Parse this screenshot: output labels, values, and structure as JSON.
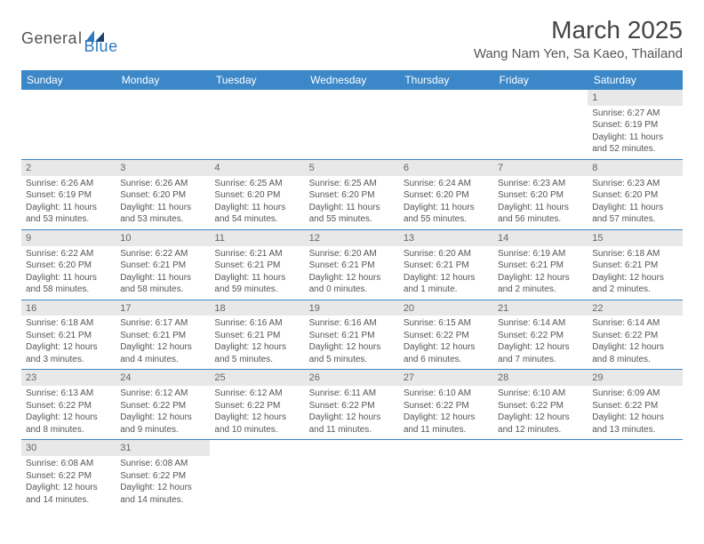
{
  "logo": {
    "part1": "Genera",
    "part2": "l",
    "part3": "Blue"
  },
  "title": "March 2025",
  "location": "Wang Nam Yen, Sa Kaeo, Thailand",
  "colors": {
    "header_bg": "#3b87c8",
    "header_text": "#ffffff",
    "daynum_bg": "#e8e8e8",
    "text": "#555555",
    "rule": "#3b87c8"
  },
  "weekdays": [
    "Sunday",
    "Monday",
    "Tuesday",
    "Wednesday",
    "Thursday",
    "Friday",
    "Saturday"
  ],
  "weeks": [
    [
      null,
      null,
      null,
      null,
      null,
      null,
      {
        "n": "1",
        "sr": "Sunrise: 6:27 AM",
        "ss": "Sunset: 6:19 PM",
        "d1": "Daylight: 11 hours",
        "d2": "and 52 minutes."
      }
    ],
    [
      {
        "n": "2",
        "sr": "Sunrise: 6:26 AM",
        "ss": "Sunset: 6:19 PM",
        "d1": "Daylight: 11 hours",
        "d2": "and 53 minutes."
      },
      {
        "n": "3",
        "sr": "Sunrise: 6:26 AM",
        "ss": "Sunset: 6:20 PM",
        "d1": "Daylight: 11 hours",
        "d2": "and 53 minutes."
      },
      {
        "n": "4",
        "sr": "Sunrise: 6:25 AM",
        "ss": "Sunset: 6:20 PM",
        "d1": "Daylight: 11 hours",
        "d2": "and 54 minutes."
      },
      {
        "n": "5",
        "sr": "Sunrise: 6:25 AM",
        "ss": "Sunset: 6:20 PM",
        "d1": "Daylight: 11 hours",
        "d2": "and 55 minutes."
      },
      {
        "n": "6",
        "sr": "Sunrise: 6:24 AM",
        "ss": "Sunset: 6:20 PM",
        "d1": "Daylight: 11 hours",
        "d2": "and 55 minutes."
      },
      {
        "n": "7",
        "sr": "Sunrise: 6:23 AM",
        "ss": "Sunset: 6:20 PM",
        "d1": "Daylight: 11 hours",
        "d2": "and 56 minutes."
      },
      {
        "n": "8",
        "sr": "Sunrise: 6:23 AM",
        "ss": "Sunset: 6:20 PM",
        "d1": "Daylight: 11 hours",
        "d2": "and 57 minutes."
      }
    ],
    [
      {
        "n": "9",
        "sr": "Sunrise: 6:22 AM",
        "ss": "Sunset: 6:20 PM",
        "d1": "Daylight: 11 hours",
        "d2": "and 58 minutes."
      },
      {
        "n": "10",
        "sr": "Sunrise: 6:22 AM",
        "ss": "Sunset: 6:21 PM",
        "d1": "Daylight: 11 hours",
        "d2": "and 58 minutes."
      },
      {
        "n": "11",
        "sr": "Sunrise: 6:21 AM",
        "ss": "Sunset: 6:21 PM",
        "d1": "Daylight: 11 hours",
        "d2": "and 59 minutes."
      },
      {
        "n": "12",
        "sr": "Sunrise: 6:20 AM",
        "ss": "Sunset: 6:21 PM",
        "d1": "Daylight: 12 hours",
        "d2": "and 0 minutes."
      },
      {
        "n": "13",
        "sr": "Sunrise: 6:20 AM",
        "ss": "Sunset: 6:21 PM",
        "d1": "Daylight: 12 hours",
        "d2": "and 1 minute."
      },
      {
        "n": "14",
        "sr": "Sunrise: 6:19 AM",
        "ss": "Sunset: 6:21 PM",
        "d1": "Daylight: 12 hours",
        "d2": "and 2 minutes."
      },
      {
        "n": "15",
        "sr": "Sunrise: 6:18 AM",
        "ss": "Sunset: 6:21 PM",
        "d1": "Daylight: 12 hours",
        "d2": "and 2 minutes."
      }
    ],
    [
      {
        "n": "16",
        "sr": "Sunrise: 6:18 AM",
        "ss": "Sunset: 6:21 PM",
        "d1": "Daylight: 12 hours",
        "d2": "and 3 minutes."
      },
      {
        "n": "17",
        "sr": "Sunrise: 6:17 AM",
        "ss": "Sunset: 6:21 PM",
        "d1": "Daylight: 12 hours",
        "d2": "and 4 minutes."
      },
      {
        "n": "18",
        "sr": "Sunrise: 6:16 AM",
        "ss": "Sunset: 6:21 PM",
        "d1": "Daylight: 12 hours",
        "d2": "and 5 minutes."
      },
      {
        "n": "19",
        "sr": "Sunrise: 6:16 AM",
        "ss": "Sunset: 6:21 PM",
        "d1": "Daylight: 12 hours",
        "d2": "and 5 minutes."
      },
      {
        "n": "20",
        "sr": "Sunrise: 6:15 AM",
        "ss": "Sunset: 6:22 PM",
        "d1": "Daylight: 12 hours",
        "d2": "and 6 minutes."
      },
      {
        "n": "21",
        "sr": "Sunrise: 6:14 AM",
        "ss": "Sunset: 6:22 PM",
        "d1": "Daylight: 12 hours",
        "d2": "and 7 minutes."
      },
      {
        "n": "22",
        "sr": "Sunrise: 6:14 AM",
        "ss": "Sunset: 6:22 PM",
        "d1": "Daylight: 12 hours",
        "d2": "and 8 minutes."
      }
    ],
    [
      {
        "n": "23",
        "sr": "Sunrise: 6:13 AM",
        "ss": "Sunset: 6:22 PM",
        "d1": "Daylight: 12 hours",
        "d2": "and 8 minutes."
      },
      {
        "n": "24",
        "sr": "Sunrise: 6:12 AM",
        "ss": "Sunset: 6:22 PM",
        "d1": "Daylight: 12 hours",
        "d2": "and 9 minutes."
      },
      {
        "n": "25",
        "sr": "Sunrise: 6:12 AM",
        "ss": "Sunset: 6:22 PM",
        "d1": "Daylight: 12 hours",
        "d2": "and 10 minutes."
      },
      {
        "n": "26",
        "sr": "Sunrise: 6:11 AM",
        "ss": "Sunset: 6:22 PM",
        "d1": "Daylight: 12 hours",
        "d2": "and 11 minutes."
      },
      {
        "n": "27",
        "sr": "Sunrise: 6:10 AM",
        "ss": "Sunset: 6:22 PM",
        "d1": "Daylight: 12 hours",
        "d2": "and 11 minutes."
      },
      {
        "n": "28",
        "sr": "Sunrise: 6:10 AM",
        "ss": "Sunset: 6:22 PM",
        "d1": "Daylight: 12 hours",
        "d2": "and 12 minutes."
      },
      {
        "n": "29",
        "sr": "Sunrise: 6:09 AM",
        "ss": "Sunset: 6:22 PM",
        "d1": "Daylight: 12 hours",
        "d2": "and 13 minutes."
      }
    ],
    [
      {
        "n": "30",
        "sr": "Sunrise: 6:08 AM",
        "ss": "Sunset: 6:22 PM",
        "d1": "Daylight: 12 hours",
        "d2": "and 14 minutes."
      },
      {
        "n": "31",
        "sr": "Sunrise: 6:08 AM",
        "ss": "Sunset: 6:22 PM",
        "d1": "Daylight: 12 hours",
        "d2": "and 14 minutes."
      },
      null,
      null,
      null,
      null,
      null
    ]
  ]
}
